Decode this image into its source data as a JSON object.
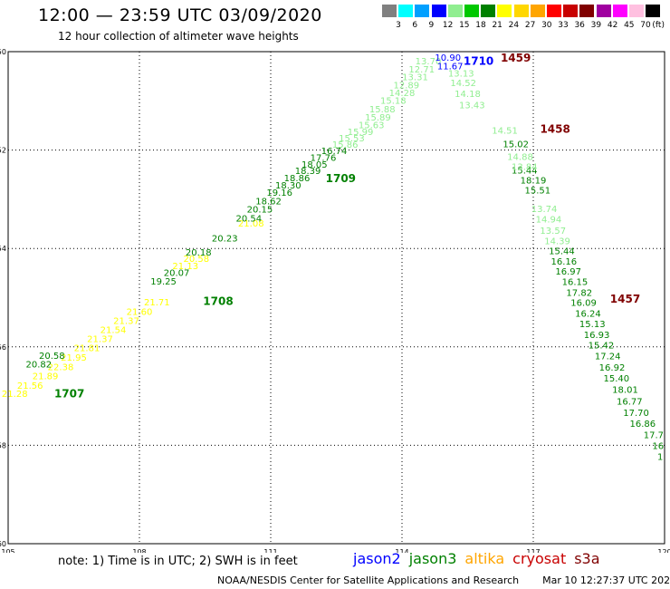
{
  "header": {
    "title": "12:00 — 23:59 UTC 03/09/2020",
    "subtitle": "12 hour collection of altimeter wave heights"
  },
  "color_scale": {
    "unit": "(ft)",
    "bins": [
      {
        "label": "3",
        "color": "#808080"
      },
      {
        "label": "6",
        "color": "#00ffff"
      },
      {
        "label": "9",
        "color": "#00a0ff"
      },
      {
        "label": "12",
        "color": "#0000ff"
      },
      {
        "label": "15",
        "color": "#90ee90"
      },
      {
        "label": "18",
        "color": "#00c800"
      },
      {
        "label": "21",
        "color": "#008000"
      },
      {
        "label": "24",
        "color": "#ffff00"
      },
      {
        "label": "27",
        "color": "#ffd700"
      },
      {
        "label": "30",
        "color": "#ffa500"
      },
      {
        "label": "33",
        "color": "#ff0000"
      },
      {
        "label": "36",
        "color": "#c80000"
      },
      {
        "label": "39",
        "color": "#800000"
      },
      {
        "label": "42",
        "color": "#a000a0"
      },
      {
        "label": "45",
        "color": "#ff00ff"
      },
      {
        "label": "70",
        "color": "#ffc0e0"
      },
      {
        "label": "",
        "color": "#000000"
      }
    ]
  },
  "axes": {
    "lon_ticks": [
      "105",
      "108",
      "111",
      "114",
      "117",
      "120"
    ],
    "lat_ticks": [
      "-50",
      "-52",
      "-54",
      "-56",
      "-58",
      "-60"
    ],
    "lon_range": [
      105,
      120
    ],
    "lat_range": [
      -50,
      -60
    ]
  },
  "chart_data": {
    "type": "scatter",
    "tracks": [
      {
        "color": "#ffff00",
        "points": [
          {
            "lon": 105.15,
            "lat": -57.02,
            "v": "21.28"
          },
          {
            "lon": 105.5,
            "lat": -56.85,
            "v": "21.56"
          },
          {
            "lon": 105.85,
            "lat": -56.66,
            "v": "21.89"
          },
          {
            "lon": 106.2,
            "lat": -56.47,
            "v": "22.38"
          },
          {
            "lon": 106.5,
            "lat": -56.28,
            "v": "21.95"
          },
          {
            "lon": 106.8,
            "lat": -56.09,
            "v": "21.81"
          },
          {
            "lon": 107.1,
            "lat": -55.9,
            "v": "21.37"
          },
          {
            "lon": 107.4,
            "lat": -55.72,
            "v": "21.54"
          },
          {
            "lon": 107.7,
            "lat": -55.53,
            "v": "21.37"
          },
          {
            "lon": 108.0,
            "lat": -55.35,
            "v": "21.60"
          },
          {
            "lon": 108.4,
            "lat": -55.16,
            "v": "21.71"
          },
          {
            "lon": 109.05,
            "lat": -54.42,
            "v": "21.13"
          },
          {
            "lon": 109.3,
            "lat": -54.27,
            "v": "20.58"
          },
          {
            "lon": 110.55,
            "lat": -53.55,
            "v": "21.08"
          }
        ]
      },
      {
        "color": "#008000",
        "points": [
          {
            "lon": 105.7,
            "lat": -56.42,
            "v": "20.82"
          },
          {
            "lon": 106.0,
            "lat": -56.24,
            "v": "20.58"
          },
          {
            "lon": 108.55,
            "lat": -54.73,
            "v": "19.25"
          },
          {
            "lon": 108.85,
            "lat": -54.56,
            "v": "20.07"
          },
          {
            "lon": 109.35,
            "lat": -54.14,
            "v": "20.18"
          },
          {
            "lon": 109.95,
            "lat": -53.86,
            "v": "20.23"
          },
          {
            "lon": 110.5,
            "lat": -53.45,
            "v": "20.54"
          },
          {
            "lon": 110.75,
            "lat": -53.27,
            "v": "20.15"
          },
          {
            "lon": 110.95,
            "lat": -53.1,
            "v": "18.62"
          },
          {
            "lon": 111.2,
            "lat": -52.93,
            "v": "19.16"
          },
          {
            "lon": 111.4,
            "lat": -52.78,
            "v": "18.30"
          },
          {
            "lon": 111.6,
            "lat": -52.63,
            "v": "18.86"
          },
          {
            "lon": 111.85,
            "lat": -52.49,
            "v": "18.39"
          },
          {
            "lon": 112.0,
            "lat": -52.36,
            "v": "18.05"
          },
          {
            "lon": 112.2,
            "lat": -52.22,
            "v": "17.76"
          },
          {
            "lon": 112.45,
            "lat": -52.08,
            "v": "16.74"
          },
          {
            "lon": 116.6,
            "lat": -51.94,
            "v": "15.02"
          },
          {
            "lon": 116.8,
            "lat": -52.48,
            "v": "15.44"
          },
          {
            "lon": 117.0,
            "lat": -52.68,
            "v": "18.19"
          },
          {
            "lon": 117.1,
            "lat": -52.88,
            "v": "15.51"
          },
          {
            "lon": 117.65,
            "lat": -54.12,
            "v": "15.44"
          },
          {
            "lon": 117.7,
            "lat": -54.33,
            "v": "16.16"
          },
          {
            "lon": 117.8,
            "lat": -54.53,
            "v": "16.97"
          },
          {
            "lon": 117.95,
            "lat": -54.74,
            "v": "16.15"
          },
          {
            "lon": 118.05,
            "lat": -54.96,
            "v": "17.82"
          },
          {
            "lon": 118.15,
            "lat": -55.17,
            "v": "16.09"
          },
          {
            "lon": 118.25,
            "lat": -55.39,
            "v": "16.24"
          },
          {
            "lon": 118.35,
            "lat": -55.6,
            "v": "15.13"
          },
          {
            "lon": 118.45,
            "lat": -55.82,
            "v": "16.93"
          },
          {
            "lon": 118.55,
            "lat": -56.03,
            "v": "15.42"
          },
          {
            "lon": 118.7,
            "lat": -56.25,
            "v": "17.24"
          },
          {
            "lon": 118.8,
            "lat": -56.48,
            "v": "16.92"
          },
          {
            "lon": 118.9,
            "lat": -56.7,
            "v": "15.40"
          },
          {
            "lon": 119.1,
            "lat": -56.93,
            "v": "18.01"
          },
          {
            "lon": 119.2,
            "lat": -57.17,
            "v": "16.77"
          },
          {
            "lon": 119.35,
            "lat": -57.4,
            "v": "17.70"
          },
          {
            "lon": 119.5,
            "lat": -57.62,
            "v": "16.86"
          },
          {
            "lon": 119.75,
            "lat": -57.85,
            "v": "17.7"
          },
          {
            "lon": 119.85,
            "lat": -58.08,
            "v": "16"
          },
          {
            "lon": 119.9,
            "lat": -58.3,
            "v": "1"
          }
        ]
      },
      {
        "color": "#90ee90",
        "points": [
          {
            "lon": 112.7,
            "lat": -51.95,
            "v": "15.86"
          },
          {
            "lon": 112.85,
            "lat": -51.82,
            "v": "15.53"
          },
          {
            "lon": 113.05,
            "lat": -51.69,
            "v": "15.99"
          },
          {
            "lon": 113.3,
            "lat": -51.56,
            "v": "15.63"
          },
          {
            "lon": 113.45,
            "lat": -51.4,
            "v": "15.89"
          },
          {
            "lon": 113.55,
            "lat": -51.23,
            "v": "15.88"
          },
          {
            "lon": 113.8,
            "lat": -51.06,
            "v": "15.18"
          },
          {
            "lon": 114.0,
            "lat": -50.9,
            "v": "14.28"
          },
          {
            "lon": 114.1,
            "lat": -50.75,
            "v": "12.89"
          },
          {
            "lon": 114.3,
            "lat": -50.58,
            "v": "13.31"
          },
          {
            "lon": 114.45,
            "lat": -50.42,
            "v": "12.71"
          },
          {
            "lon": 114.6,
            "lat": -50.26,
            "v": "13.70"
          },
          {
            "lon": 115.35,
            "lat": -50.51,
            "v": "13.13"
          },
          {
            "lon": 115.4,
            "lat": -50.7,
            "v": "14.52"
          },
          {
            "lon": 115.5,
            "lat": -50.92,
            "v": "14.18"
          },
          {
            "lon": 115.6,
            "lat": -51.15,
            "v": "13.43"
          },
          {
            "lon": 116.35,
            "lat": -51.67,
            "v": "14.51"
          },
          {
            "lon": 116.7,
            "lat": -52.2,
            "v": "14.88"
          },
          {
            "lon": 116.8,
            "lat": -52.4,
            "v": "13.84"
          },
          {
            "lon": 117.25,
            "lat": -53.26,
            "v": "13.74"
          },
          {
            "lon": 117.35,
            "lat": -53.47,
            "v": "14.94"
          },
          {
            "lon": 117.45,
            "lat": -53.7,
            "v": "13.57"
          },
          {
            "lon": 117.55,
            "lat": -53.91,
            "v": "14.39"
          }
        ]
      },
      {
        "color": "#0000ff",
        "points": [
          {
            "lon": 115.05,
            "lat": -50.18,
            "v": "10.90"
          },
          {
            "lon": 115.1,
            "lat": -50.36,
            "v": "11.67"
          }
        ]
      }
    ],
    "pass_labels": [
      {
        "text": "1707",
        "lon": 106.4,
        "lat": -57.03,
        "color": "#008000"
      },
      {
        "text": "1708",
        "lon": 109.8,
        "lat": -55.15,
        "color": "#008000"
      },
      {
        "text": "1709",
        "lon": 112.6,
        "lat": -52.65,
        "color": "#008000"
      },
      {
        "text": "1459",
        "lon": 116.6,
        "lat": -50.2,
        "color": "#800000"
      },
      {
        "text": "1710",
        "lon": 115.75,
        "lat": -50.27,
        "color": "#0000ff"
      },
      {
        "text": "1458",
        "lon": 117.5,
        "lat": -51.65,
        "color": "#800000"
      },
      {
        "text": "1457",
        "lon": 119.1,
        "lat": -55.1,
        "color": "#800000"
      }
    ]
  },
  "footer": {
    "note": "note: 1) Time is in UTC; 2) SWH is in feet",
    "satellites": [
      {
        "name": "jason2",
        "color": "#0000ff"
      },
      {
        "name": "jason3",
        "color": "#008000"
      },
      {
        "name": "altika",
        "color": "#ffa500"
      },
      {
        "name": "cryosat",
        "color": "#c80000"
      },
      {
        "name": "s3a",
        "color": "#800000"
      }
    ],
    "credit": "NOAA/NESDIS Center for Satellite Applications and Research",
    "timestamp": "Mar 10 12:27:37 UTC 2020"
  }
}
